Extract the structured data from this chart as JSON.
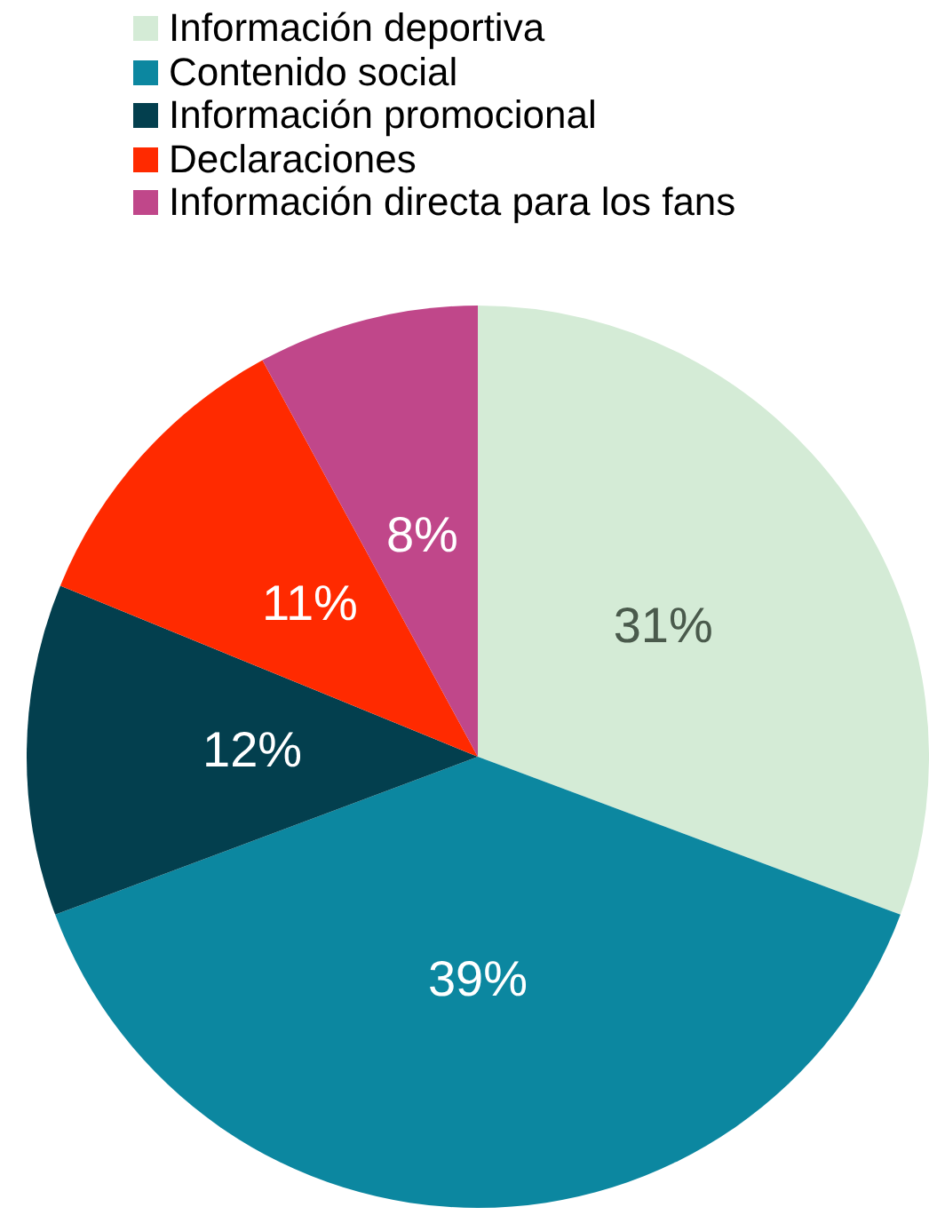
{
  "chart_data": {
    "type": "pie",
    "categories": [
      "Información deportiva",
      "Contenido social",
      "Información promocional",
      "Declaraciones",
      "Información directa para los fans"
    ],
    "values": [
      31,
      39,
      12,
      11,
      8
    ],
    "colors": [
      "#d4ebd6",
      "#0c87a0",
      "#033f4e",
      "#ff2a00",
      "#c0478a"
    ],
    "value_labels": [
      "31%",
      "39%",
      "12%",
      "11%",
      "8%"
    ],
    "legend": "top"
  }
}
